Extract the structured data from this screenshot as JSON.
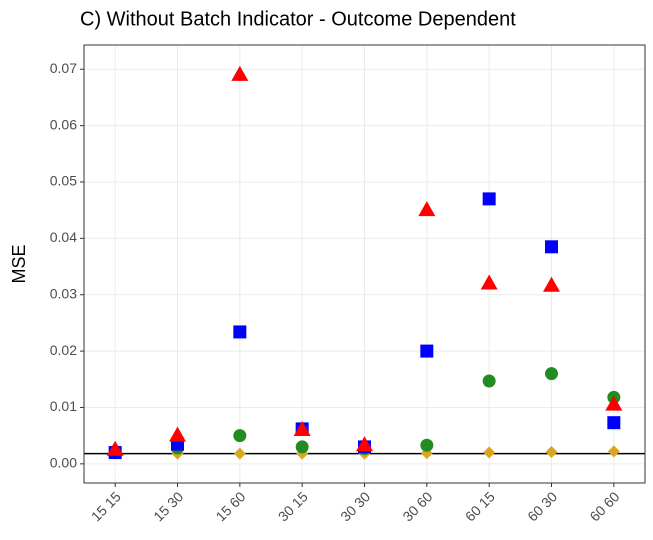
{
  "chart_data": {
    "type": "scatter",
    "title": "C)   Without Batch Indicator - Outcome Dependent",
    "y_label": "MSE",
    "categories": [
      "15 15",
      "15 30",
      "15 60",
      "30 15",
      "30 30",
      "30 60",
      "60 15",
      "60 30",
      "60 60"
    ],
    "series": [
      {
        "color": "#daa520",
        "marker": "diamond",
        "values": [
          0.0018,
          0.0018,
          0.0018,
          0.0018,
          0.0018,
          0.0019,
          0.002,
          0.0021,
          0.0022
        ]
      },
      {
        "color": "#228b22",
        "marker": "circle",
        "values": [
          0.0022,
          0.0028,
          0.005,
          0.003,
          0.0027,
          0.0033,
          0.0147,
          0.016,
          0.0118
        ]
      },
      {
        "color": "#0000ff",
        "marker": "square",
        "values": [
          0.002,
          0.0035,
          0.0234,
          0.0062,
          0.003,
          0.02,
          0.047,
          0.0385,
          0.0073
        ]
      },
      {
        "color": "#ff0000",
        "marker": "triangle",
        "values": [
          0.0025,
          0.005,
          0.069,
          0.006,
          0.0033,
          0.045,
          0.032,
          0.0316,
          0.0105
        ]
      }
    ],
    "hline": 0.0018,
    "ylim": [
      -0.0034,
      0.0743
    ],
    "yticks": [
      {
        "value": 0,
        "label": "0.00"
      },
      {
        "value": 0.01,
        "label": "0.01"
      },
      {
        "value": 0.02,
        "label": "0.02"
      },
      {
        "value": 0.03,
        "label": "0.03"
      },
      {
        "value": 0.04,
        "label": "0.04"
      },
      {
        "value": 0.05,
        "label": "0.05"
      },
      {
        "value": 0.06,
        "label": "0.06"
      },
      {
        "value": 0.07,
        "label": "0.07"
      }
    ],
    "grid": true
  }
}
